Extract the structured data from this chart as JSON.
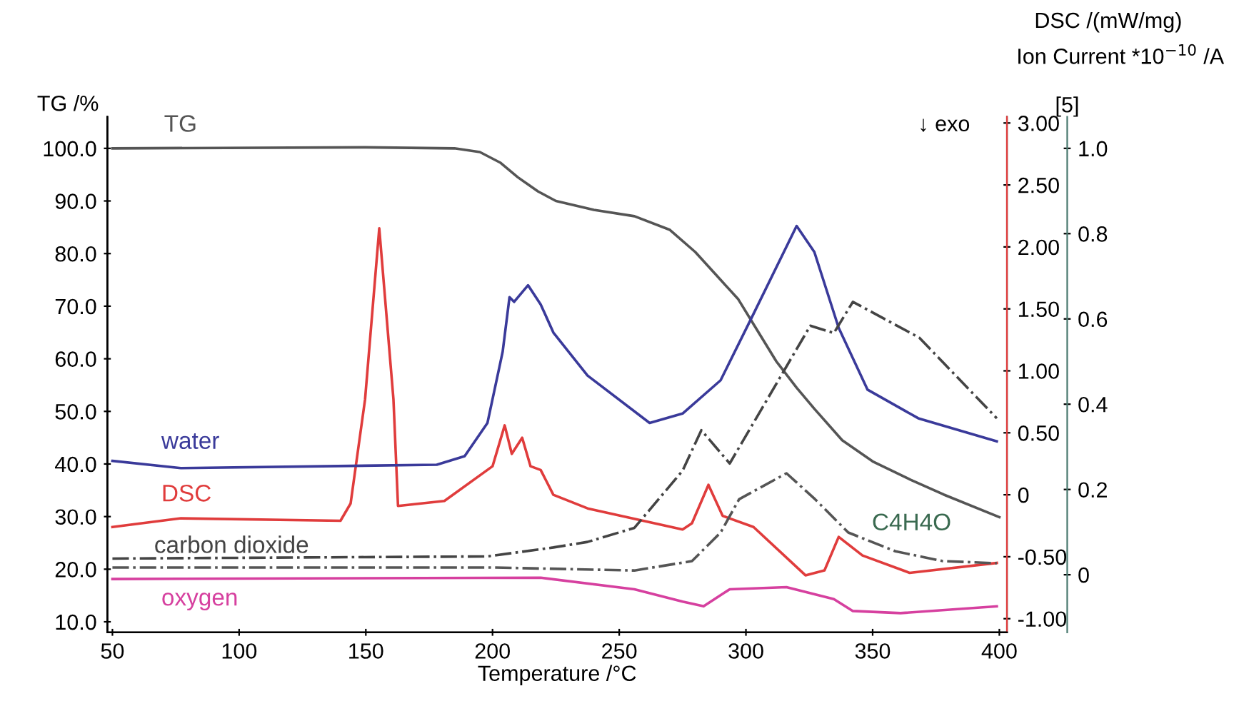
{
  "chart_data": {
    "type": "line",
    "xlabel": "Temperature /°C",
    "ylabel": "TG /%",
    "y2label": "DSC /(mW/mg)",
    "y3label": "Ion Current *10$^{−10}$ /A",
    "annotations": [
      "↓ exo",
      "[5]"
    ],
    "xlim": [
      48,
      403
    ],
    "xticks": [
      50,
      100,
      150,
      200,
      250,
      300,
      350,
      400
    ],
    "ylim": [
      8,
      106
    ],
    "yticks": [
      {
        "value": 10,
        "label": "10.0"
      },
      {
        "value": 20,
        "label": "20.0"
      },
      {
        "value": 30,
        "label": "30.0"
      },
      {
        "value": 40,
        "label": "40.0"
      },
      {
        "value": 50,
        "label": "50.0"
      },
      {
        "value": 60,
        "label": "60.0"
      },
      {
        "value": 70,
        "label": "70.0"
      },
      {
        "value": 80,
        "label": "80.0"
      },
      {
        "value": 90,
        "label": "90.0"
      },
      {
        "value": 100,
        "label": "100.0"
      }
    ],
    "y2lim": [
      -1.11,
      3.05
    ],
    "y2ticks": [
      {
        "value": -1,
        "label": "-1.00"
      },
      {
        "value": -0.5,
        "label": "-0.50"
      },
      0,
      {
        "value": 0.5,
        "label": "0.50"
      },
      {
        "value": 1,
        "label": "1.00"
      },
      {
        "value": 1.5,
        "label": "1.50"
      },
      {
        "value": 2,
        "label": "2.00"
      },
      {
        "value": 2.5,
        "label": "2.50"
      },
      {
        "value": 3,
        "label": "3.00"
      }
    ],
    "y3lim": [
      -0.135,
      1.074
    ],
    "y3ticks": [
      0,
      0.2,
      0.4,
      0.6,
      0.8,
      {
        "value": 1,
        "label": "1.0"
      }
    ],
    "grid": false,
    "legend": false,
    "marker": "none",
    "series": [
      {
        "name": "TG",
        "color": "#555555",
        "line_style": "solid",
        "x": [
          50,
          150,
          185,
          195,
          203,
          210,
          218,
          225,
          240,
          256,
          270,
          280,
          290,
          297,
          305,
          312,
          320,
          327,
          338,
          350,
          365,
          378,
          400
        ],
        "values": [
          100,
          100.2,
          100,
          99.3,
          97.3,
          94.5,
          91.8,
          90,
          88.3,
          87.1,
          84.5,
          80.3,
          75,
          71.3,
          65,
          59.5,
          54.5,
          50.5,
          44.5,
          40.5,
          37,
          34.2,
          29.9
        ]
      },
      {
        "name": "water",
        "color": "#3a3a9a",
        "axis": "y3",
        "line_style": "solid",
        "x": [
          50,
          77,
          178,
          189,
          198,
          204,
          206.7,
          208.5,
          214,
          219,
          224,
          237.5,
          262,
          275,
          290,
          303,
          320,
          327,
          336.6,
          348,
          368,
          399
        ],
        "values": [
          0.267,
          0.25,
          0.258,
          0.278,
          0.356,
          0.523,
          0.651,
          0.64,
          0.679,
          0.634,
          0.568,
          0.467,
          0.356,
          0.378,
          0.456,
          0.612,
          0.818,
          0.757,
          0.579,
          0.434,
          0.367,
          0.313
        ]
      },
      {
        "name": "DSC",
        "color": "#e03c3c",
        "axis": "y2",
        "line_style": "solid",
        "x": [
          50,
          77,
          140,
          144,
          149.7,
          155.3,
          160.9,
          162.7,
          181,
          200,
          204.8,
          207.6,
          211.7,
          215,
          219,
          224,
          237.5,
          275,
          278.7,
          285.2,
          290.8,
          303,
          323.5,
          331,
          336.6,
          346,
          364.6,
          399
        ],
        "values": [
          -0.26,
          -0.19,
          -0.21,
          -0.07,
          0.77,
          2.15,
          0.77,
          -0.09,
          -0.05,
          0.23,
          0.56,
          0.33,
          0.46,
          0.23,
          0.2,
          0.0,
          -0.11,
          -0.28,
          -0.23,
          0.08,
          -0.17,
          -0.26,
          -0.65,
          -0.61,
          -0.34,
          -0.49,
          -0.63,
          -0.55
        ]
      },
      {
        "name": "carbon dioxide",
        "color": "#444444",
        "axis": "y3",
        "line_style": "dashdot",
        "x": [
          50,
          198,
          224,
          237.5,
          256,
          275,
          282.4,
          293.6,
          325.4,
          334.7,
          342.2,
          368.4,
          399
        ],
        "values": [
          0.038,
          0.043,
          0.064,
          0.077,
          0.11,
          0.244,
          0.339,
          0.261,
          0.584,
          0.567,
          0.64,
          0.556,
          0.367
        ]
      },
      {
        "name": "C4H4O",
        "color": "#555555",
        "axis": "y3",
        "line_style": "dashdot",
        "x": [
          50,
          200,
          256,
          278.7,
          290,
          297.3,
          316,
          327.3,
          340.4,
          359,
          377.7,
          399
        ],
        "values": [
          0.017,
          0.017,
          0.01,
          0.032,
          0.099,
          0.177,
          0.238,
          0.177,
          0.099,
          0.055,
          0.032,
          0.027
        ]
      },
      {
        "name": "oxygen",
        "color": "#d6409f",
        "axis": "y3",
        "line_style": "solid",
        "x": [
          50,
          219,
          256,
          275,
          283.3,
          293.6,
          316,
          334.7,
          342.2,
          361,
          399
        ],
        "values": [
          -0.01,
          -0.007,
          -0.034,
          -0.063,
          -0.074,
          -0.034,
          -0.029,
          -0.057,
          -0.085,
          -0.09,
          -0.074
        ]
      }
    ]
  }
}
